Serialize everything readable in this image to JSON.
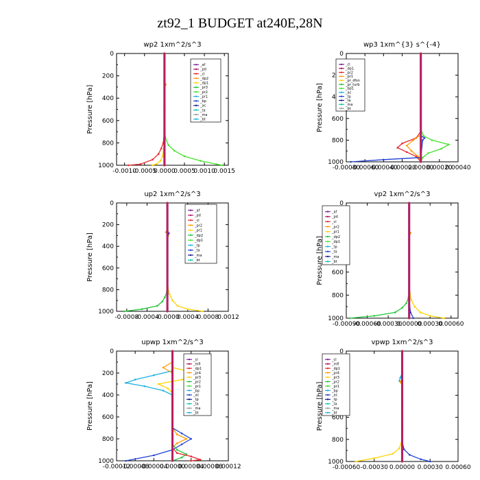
{
  "figure": {
    "title": "zt92_1  BUDGET at240E,28N"
  },
  "colors": {
    "purple": "#7a1fa0",
    "darkred": "#b01060",
    "red": "#e8262c",
    "orange": "#ff9a00",
    "yellow": "#ffd200",
    "green": "#22c43a",
    "lime": "#44e22a",
    "blue": "#1f3fd0",
    "navy": "#1a1a8c",
    "cyan": "#1ab0e0",
    "teal": "#00c8b0",
    "grey": "#9a9a9a"
  },
  "chart_data": [
    {
      "id": "wp2",
      "type": "line",
      "title": "wp2   1xm^2/s^3",
      "ylabel": "Pressure [hPa]",
      "xlim": [
        -0.0012,
        0.0016
      ],
      "ylim": [
        1000,
        0
      ],
      "xticks": [
        -0.001,
        -0.0005,
        0,
        0.0005,
        0.001,
        0.0015
      ],
      "xtick_labels": [
        "-0.0010",
        "-0.0005",
        "0.0000",
        "0.0005",
        "0.0010",
        "0.0015"
      ],
      "yticks": [
        0,
        200,
        400,
        600,
        800,
        1000
      ],
      "legend": [
        "_af",
        "_pd",
        "_cl",
        "_dp2",
        "_dp1",
        "_pr3",
        "_pr2",
        "_pr1",
        "_bp",
        "_ac",
        "_ta",
        "_ma",
        "_bt"
      ],
      "series": [
        {
          "name": "_pr1",
          "color": "#44e22a",
          "p": [
            0,
            600,
            750,
            820,
            870,
            920,
            960,
            990,
            1000
          ],
          "v": [
            0,
            0,
            2e-05,
            0.0001,
            0.00025,
            0.0005,
            0.0009,
            0.0013,
            0.00145
          ]
        },
        {
          "name": "_dp1",
          "color": "#e8262c",
          "p": [
            0,
            700,
            800,
            850,
            900,
            950,
            990,
            1000
          ],
          "v": [
            0,
            0,
            -3e-05,
            -8e-05,
            -0.00015,
            -0.0003,
            -0.0006,
            -0.0009
          ]
        },
        {
          "name": "_pr2",
          "color": "#ffd200",
          "p": [
            0,
            700,
            800,
            860,
            920,
            960,
            990,
            1000
          ],
          "v": [
            0,
            0,
            0,
            -2e-05,
            -5e-05,
            -0.0001,
            -0.0002,
            -0.0003
          ]
        },
        {
          "name": "_dp2",
          "color": "#ff9a00",
          "p": [
            0,
            260,
            270,
            280,
            300,
            700,
            1000
          ],
          "v": [
            0,
            0,
            2e-05,
            3e-05,
            0,
            0,
            0
          ]
        },
        {
          "name": "_pd",
          "color": "#b01060",
          "p": [
            0,
            1000
          ],
          "v": [
            0,
            0
          ]
        },
        {
          "name": "_ma",
          "color": "#1a1a8c",
          "p": [
            0,
            1000
          ],
          "v": [
            0,
            0
          ]
        },
        {
          "name": "_af",
          "color": "#7a1fa0",
          "p": [
            0,
            1000
          ],
          "v": [
            0,
            0
          ]
        }
      ]
    },
    {
      "id": "wp3",
      "type": "line",
      "title": "wp3   1xm^{3} s^{-4}",
      "ylabel": "Pressure [hPa]",
      "xlim": [
        -0.0008,
        0.0004
      ],
      "ylim": [
        1000,
        0
      ],
      "xticks": [
        -0.0008,
        -0.0006,
        -0.0004,
        -0.0002,
        0,
        0.0002,
        0.0004
      ],
      "xtick_labels": [
        "-0.00080",
        "-0.00060",
        "-0.00040",
        "-0.00020",
        "0.00000",
        "0.00020",
        "0.00040"
      ],
      "yticks": [
        0,
        200,
        400,
        600,
        800,
        1000
      ],
      "legend": [
        "_cl",
        "_dp1",
        "_pr2",
        "_pr1",
        "_pr_dfsn",
        "_pr_turb",
        "_bp1",
        "_ac",
        "_tp",
        "_ta",
        "_ma",
        "_bt"
      ],
      "series": [
        {
          "name": "_pr_turb",
          "color": "#44e22a",
          "p": [
            0,
            700,
            760,
            800,
            840,
            880,
            920,
            960,
            1000
          ],
          "v": [
            0,
            0,
            3e-05,
            0.00012,
            0.0003,
            0.00022,
            8e-05,
            2e-05,
            0
          ]
        },
        {
          "name": "_dp1",
          "color": "#e8262c",
          "p": [
            0,
            720,
            780,
            830,
            870,
            910,
            950,
            1000
          ],
          "v": [
            0,
            0,
            -5e-05,
            -0.0002,
            -0.00025,
            -0.00015,
            -5e-05,
            0
          ]
        },
        {
          "name": "_pr2",
          "color": "#ff9a00",
          "p": [
            0,
            750,
            800,
            850,
            900,
            950,
            1000
          ],
          "v": [
            0,
            0,
            -8e-05,
            -0.00015,
            -0.0001,
            -3e-05,
            0
          ]
        },
        {
          "name": "_ta",
          "color": "#1f3fd0",
          "p": [
            0,
            760,
            780,
            800,
            960,
            980,
            1000
          ],
          "v": [
            0,
            0,
            4e-05,
            2e-05,
            0,
            -0.0004,
            -0.00075
          ]
        },
        {
          "name": "_cl",
          "color": "#7a1fa0",
          "p": [
            0,
            1000
          ],
          "v": [
            0,
            0
          ]
        },
        {
          "name": "_ma",
          "color": "#1a1a8c",
          "p": [
            0,
            1000
          ],
          "v": [
            0,
            0
          ]
        }
      ]
    },
    {
      "id": "up2",
      "type": "line",
      "title": "up2   1xm^2/s^3",
      "ylabel": "Pressure [hPa]",
      "xlim": [
        -0.001,
        0.0012
      ],
      "ylim": [
        1000,
        0
      ],
      "xticks": [
        -0.0008,
        -0.0004,
        0,
        0.0004,
        0.0008,
        0.0012
      ],
      "xtick_labels": [
        "-0.0008",
        "-0.0004",
        "-0.0000",
        "0.0004",
        "0.0008",
        "0.0012"
      ],
      "yticks": [
        0,
        200,
        400,
        600,
        800,
        1000
      ],
      "legend": [
        "_af",
        "_pd",
        "_cl",
        "_pr2",
        "_pr1",
        "_dp2",
        "_dp1",
        "_tp",
        "_ta",
        "_ma",
        "_bt"
      ],
      "series": [
        {
          "name": "_dp1",
          "color": "#22c43a",
          "p": [
            0,
            750,
            820,
            870,
            910,
            950,
            980,
            1000
          ],
          "v": [
            0,
            0,
            -1e-05,
            -5e-05,
            -0.0001,
            -0.0002,
            -0.0005,
            -0.00085
          ]
        },
        {
          "name": "_pr1",
          "color": "#ffd200",
          "p": [
            0,
            700,
            780,
            840,
            900,
            950,
            980,
            1000
          ],
          "v": [
            0,
            0,
            1e-05,
            4e-05,
            0.0001,
            0.0002,
            0.0004,
            0.0007
          ]
        },
        {
          "name": "_pr2",
          "color": "#ff9a00",
          "p": [
            0,
            240,
            270,
            300,
            330,
            700,
            1000
          ],
          "v": [
            0,
            0,
            -3e-05,
            2e-05,
            0,
            0,
            0
          ]
        },
        {
          "name": "_ta",
          "color": "#1f3fd0",
          "p": [
            0,
            250,
            280,
            310,
            700,
            1000
          ],
          "v": [
            0,
            0,
            3e-05,
            0,
            0,
            0
          ]
        },
        {
          "name": "_pd",
          "color": "#e8262c",
          "p": [
            0,
            1000
          ],
          "v": [
            0,
            0
          ]
        },
        {
          "name": "_af",
          "color": "#7a1fa0",
          "p": [
            0,
            1000
          ],
          "v": [
            0,
            0
          ]
        }
      ]
    },
    {
      "id": "vp2",
      "type": "line",
      "title": "vp2   1xm^2/s^3",
      "ylabel": "Pressure [hPa]",
      "xlim": [
        -0.0009,
        0.0007
      ],
      "ylim": [
        1000,
        0
      ],
      "xticks": [
        -0.0009,
        -0.0006,
        -0.0003,
        0,
        0.0003,
        0.0006
      ],
      "xtick_labels": [
        "-0.00090",
        "-0.00060",
        "-0.00030",
        "0.00000",
        "0.00030",
        "0.00060"
      ],
      "yticks": [
        0,
        200,
        400,
        600,
        800,
        1000
      ],
      "legend": [
        "_af",
        "_pd",
        "_cl",
        "_pr2",
        "_pr1",
        "_dp2",
        "_dp1",
        "_tp",
        "_ta",
        "_ma",
        "_bt"
      ],
      "series": [
        {
          "name": "_dp1",
          "color": "#22c43a",
          "p": [
            0,
            750,
            820,
            870,
            910,
            950,
            980,
            1000
          ],
          "v": [
            0,
            0,
            -1e-05,
            -4e-05,
            -0.0001,
            -0.0002,
            -0.0005,
            -0.00085
          ]
        },
        {
          "name": "_pr1",
          "color": "#ffd200",
          "p": [
            0,
            700,
            780,
            840,
            900,
            950,
            980,
            1000
          ],
          "v": [
            0,
            0,
            1e-05,
            3e-05,
            8e-05,
            0.00016,
            0.0003,
            0.0005
          ]
        },
        {
          "name": "_pr2",
          "color": "#ff9a00",
          "p": [
            0,
            240,
            260,
            290,
            700,
            1000
          ],
          "v": [
            0,
            0,
            2e-05,
            0,
            0,
            0
          ]
        },
        {
          "name": "_ta",
          "color": "#1f3fd0",
          "p": [
            0,
            850,
            950,
            1000
          ],
          "v": [
            0,
            0,
            2e-05,
            6e-05
          ]
        },
        {
          "name": "_pd",
          "color": "#e8262c",
          "p": [
            0,
            1000
          ],
          "v": [
            0,
            0
          ]
        },
        {
          "name": "_af",
          "color": "#7a1fa0",
          "p": [
            0,
            1000
          ],
          "v": [
            0,
            0
          ]
        }
      ]
    },
    {
      "id": "upwp",
      "type": "line",
      "title": "upwp   1xm^2/s^3",
      "ylabel": "Pressure [hPa]",
      "xlim": [
        -0.00012,
        0.00012
      ],
      "ylim": [
        1000,
        0
      ],
      "xticks": [
        -0.00012,
        -8e-05,
        -4e-05,
        0,
        4e-05,
        8e-05,
        0.00012
      ],
      "xtick_labels": [
        "-0.00012",
        "-0.00008",
        "-0.00004",
        "0.00000",
        "0.00004",
        "0.00008",
        "0.00012"
      ],
      "yticks": [
        0,
        200,
        400,
        600,
        800,
        1000
      ],
      "legend": [
        "_cl",
        "_mfl",
        "_dp1",
        "_pr4",
        "_pr3",
        "_pr2",
        "_pr1",
        "_bp",
        "_ac",
        "_tp",
        "_ta",
        "_ma",
        "_bt"
      ],
      "series": [
        {
          "name": "_ac",
          "color": "#1ab0e0",
          "p": [
            0,
            180,
            220,
            260,
            290,
            320,
            360,
            400,
            1000
          ],
          "v": [
            0,
            0,
            -4e-05,
            -8e-05,
            -0.0001,
            -6e-05,
            -2e-05,
            0,
            0
          ]
        },
        {
          "name": "_pr1",
          "color": "#ffd200",
          "p": [
            0,
            150,
            180,
            220,
            260,
            300,
            340,
            380,
            1000
          ],
          "v": [
            0,
            0,
            3e-05,
            5e-05,
            2e-05,
            -3e-05,
            -1e-05,
            0,
            0
          ]
        },
        {
          "name": "_pr2",
          "color": "#ff9a00",
          "p": [
            0,
            100,
            150,
            200,
            700,
            760,
            800,
            840,
            880,
            1000
          ],
          "v": [
            0,
            0,
            -2e-05,
            0,
            0,
            1e-05,
            3e-05,
            1e-05,
            0,
            0
          ]
        },
        {
          "name": "_ta",
          "color": "#1f3fd0",
          "p": [
            0,
            700,
            750,
            800,
            850,
            900,
            950,
            1000
          ],
          "v": [
            0,
            0,
            2e-05,
            4e-05,
            2e-05,
            0,
            -4e-05,
            -0.0001
          ]
        },
        {
          "name": "_pr3",
          "color": "#22c43a",
          "p": [
            0,
            850,
            900,
            940,
            970,
            1000
          ],
          "v": [
            0,
            0,
            1e-05,
            3e-05,
            2e-05,
            0
          ]
        },
        {
          "name": "_dp1",
          "color": "#e8262c",
          "p": [
            0,
            880,
            930,
            960,
            990,
            1000
          ],
          "v": [
            0,
            0,
            1e-05,
            4e-05,
            6e-05,
            4e-05
          ]
        },
        {
          "name": "_mfl",
          "color": "#b01060",
          "p": [
            0,
            1000
          ],
          "v": [
            0,
            0
          ]
        },
        {
          "name": "_cl",
          "color": "#7a1fa0",
          "p": [
            0,
            1000
          ],
          "v": [
            0,
            0
          ]
        }
      ]
    },
    {
      "id": "vpwp",
      "type": "line",
      "title": "vpwp   1xm^2/s^3",
      "ylabel": "Pressure [hPa]",
      "xlim": [
        -0.0006,
        0.0006
      ],
      "ylim": [
        1000,
        0
      ],
      "xticks": [
        -0.0006,
        -0.0003,
        0,
        0.0003,
        0.0006
      ],
      "xtick_labels": [
        "-0.00060",
        "-0.00030",
        "0.00000",
        "0.00030",
        "0.00060"
      ],
      "yticks": [
        0,
        200,
        400,
        600,
        800,
        1000
      ],
      "legend": [
        "_cl",
        "_mfl",
        "_dp1",
        "_pr4",
        "_pr3",
        "_pr2",
        "_pr1",
        "_bp",
        "_ac",
        "_tp",
        "_ta",
        "_ma",
        "_bt"
      ],
      "series": [
        {
          "name": "_pr1",
          "color": "#ffd200",
          "p": [
            0,
            800,
            880,
            930,
            970,
            1000
          ],
          "v": [
            0,
            0,
            -3e-05,
            -0.0001,
            -0.0003,
            -0.0005
          ]
        },
        {
          "name": "_ta",
          "color": "#1f3fd0",
          "p": [
            0,
            820,
            890,
            940,
            980,
            1000
          ],
          "v": [
            0,
            0,
            2e-05,
            8e-05,
            0.0002,
            0.0003
          ]
        },
        {
          "name": "_ac",
          "color": "#1ab0e0",
          "p": [
            0,
            200,
            240,
            270,
            300,
            700,
            1000
          ],
          "v": [
            0,
            0,
            -2e-05,
            -3e-05,
            0,
            0,
            0
          ]
        },
        {
          "name": "_pr2",
          "color": "#ff9a00",
          "p": [
            0,
            250,
            280,
            310,
            1000
          ],
          "v": [
            0,
            0,
            -2e-05,
            0,
            0
          ]
        },
        {
          "name": "_mfl",
          "color": "#b01060",
          "p": [
            0,
            1000
          ],
          "v": [
            0,
            0
          ]
        },
        {
          "name": "_cl",
          "color": "#7a1fa0",
          "p": [
            0,
            1000
          ],
          "v": [
            0,
            0
          ]
        }
      ]
    }
  ]
}
